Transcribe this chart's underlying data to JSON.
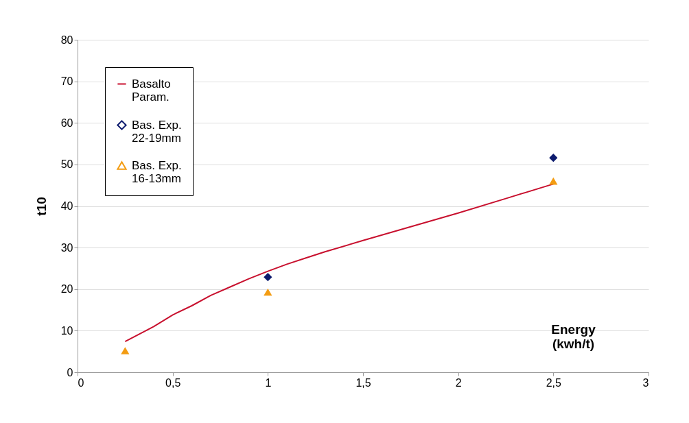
{
  "chart_data": {
    "type": "scatter",
    "xlabel": "Energy (kwh/t)",
    "ylabel": "t10",
    "xlim": [
      0,
      3
    ],
    "xticks": [
      0,
      {
        "value": 0.5,
        "label": "0,5"
      },
      1,
      {
        "value": 1.5,
        "label": "1,5"
      },
      2,
      {
        "value": 2.5,
        "label": "2,5"
      },
      3
    ],
    "ylim": [
      0,
      80
    ],
    "yticks": [
      0,
      10,
      20,
      30,
      40,
      50,
      60,
      70,
      80
    ],
    "grid": "y",
    "legend": "top left",
    "series": [
      {
        "name": "Basalto Param.",
        "type": "line",
        "color": "#c8102e",
        "marker": "none",
        "x": [
          0.25,
          0.4,
          0.5,
          0.6,
          0.7,
          0.8,
          0.9,
          1,
          1.1,
          1.2,
          1.3,
          1.5,
          1.75,
          2,
          2.25,
          2.5
        ],
        "values": [
          7.4,
          11,
          13.8,
          16,
          18.5,
          20.5,
          22.5,
          24.3,
          26,
          27.5,
          29,
          31.7,
          35,
          38.3,
          41.8,
          45.3
        ]
      },
      {
        "name": "Bas. Exp. 22-19mm",
        "type": "scatter",
        "color": "#0d1b6e",
        "marker": "diamond",
        "x": [
          1,
          2.5
        ],
        "values": [
          22.9,
          51.6
        ]
      },
      {
        "name": "Bas. Exp. 16-13mm",
        "type": "scatter",
        "color": "#f39c12",
        "marker": "triangle",
        "x": [
          0.25,
          1,
          2.5
        ],
        "values": [
          5.2,
          19.3,
          46
        ]
      }
    ]
  }
}
